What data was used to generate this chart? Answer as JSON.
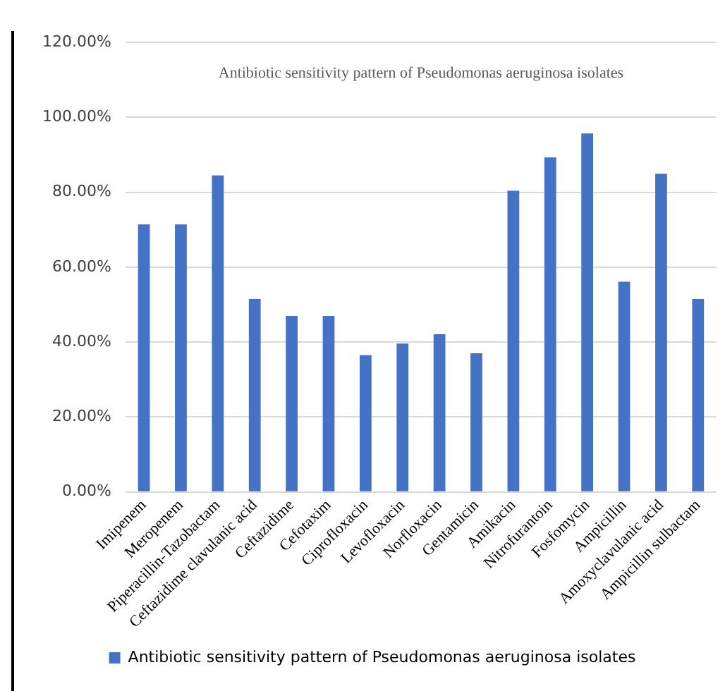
{
  "chart_data": {
    "type": "bar",
    "title": "Antibiotic sensitivity pattern of Pseudomonas aeruginosa isolates",
    "categories": [
      "Imipenem",
      "Meropenem",
      "Piperacillin-Tazobactam",
      "Ceftazidime clavulanic acid",
      "Ceftazidime",
      "Cefotaxim",
      "Ciprofloxacin",
      "Levofloxacin",
      "Norfloxacin",
      "Gentamicin",
      "Amikacin",
      "Nitrofurantoin",
      "Fosfomycin",
      "Ampicillin",
      "Amoxyclavulanic acid",
      "Ampicillin sulbactam"
    ],
    "series": [
      {
        "name": "Antibiotic sensitivity pattern of Pseudomonas aeruginosa isolates",
        "color": "#4472c4",
        "values": [
          71.4,
          71.4,
          84.5,
          51.5,
          47.0,
          47.0,
          36.5,
          39.6,
          42.1,
          37.0,
          80.4,
          89.3,
          95.7,
          56.1,
          84.9,
          51.5
        ]
      }
    ],
    "ylim": [
      0,
      120
    ],
    "yticks": [
      {
        "value": 0,
        "label": "0.00%"
      },
      {
        "value": 20,
        "label": "20.00%"
      },
      {
        "value": 40,
        "label": "40.00%"
      },
      {
        "value": 60,
        "label": "60.00%"
      },
      {
        "value": 80,
        "label": "80.00%"
      },
      {
        "value": 100,
        "label": "100.00%"
      },
      {
        "value": 120,
        "label": "120.00%"
      }
    ],
    "grid": "y",
    "legend": "bottom"
  }
}
